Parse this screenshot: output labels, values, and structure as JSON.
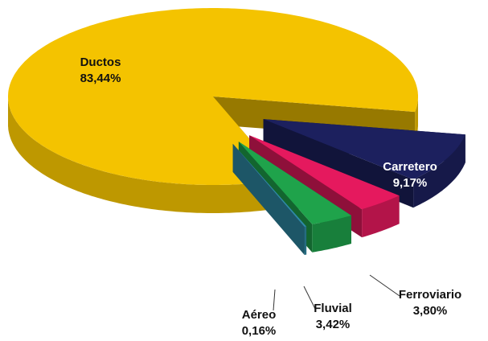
{
  "chart_data": {
    "type": "pie",
    "categories": [
      "Carretero",
      "Ferroviario",
      "Fluvial",
      "Aéreo",
      "Ductos"
    ],
    "values": [
      9.17,
      3.8,
      3.42,
      0.16,
      83.44
    ],
    "value_labels": [
      "9,17%",
      "3,80%",
      "3,42%",
      "0,16%",
      "83,44%"
    ],
    "colors": [
      "#1c205e",
      "#e5195e",
      "#1fa34b",
      "#2f8aa6",
      "#f4c300"
    ]
  }
}
